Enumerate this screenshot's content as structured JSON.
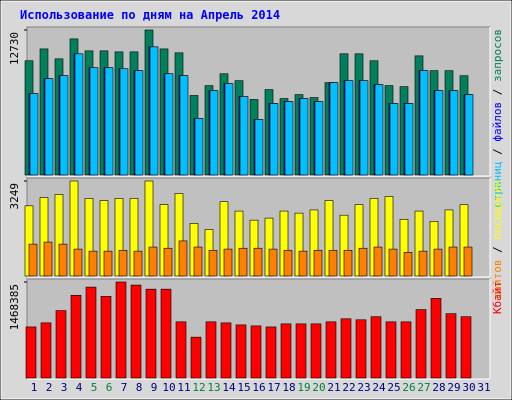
{
  "chart_data": {
    "type": "bar",
    "title": "Использование по дням на Апрель 2014",
    "categories": [
      "1",
      "2",
      "3",
      "4",
      "5",
      "6",
      "7",
      "8",
      "9",
      "10",
      "11",
      "12",
      "13",
      "14",
      "15",
      "16",
      "17",
      "18",
      "19",
      "20",
      "21",
      "22",
      "23",
      "24",
      "25",
      "26",
      "27",
      "28",
      "29",
      "30",
      "31"
    ],
    "category_colors": [
      "#000080",
      "#000080",
      "#000080",
      "#000080",
      "#008040",
      "#008040",
      "#000080",
      "#000080",
      "#000080",
      "#000080",
      "#000080",
      "#008040",
      "#008040",
      "#000080",
      "#000080",
      "#000080",
      "#000080",
      "#000080",
      "#008040",
      "#008040",
      "#000080",
      "#000080",
      "#000080",
      "#000080",
      "#000080",
      "#008040",
      "#008040",
      "#000080",
      "#000080",
      "#000080",
      "#000080"
    ],
    "legend_separator": " / ",
    "panels": [
      {
        "ylim": [
          0,
          12730
        ],
        "yticks": [
          12730
        ],
        "series": [
          {
            "name": "запросов",
            "color": "#00805c",
            "values": [
              10030,
              11070,
              10200,
              11950,
              10900,
              10900,
              10810,
              10810,
              12730,
              11070,
              10730,
              6980,
              7850,
              8890,
              8280,
              6630,
              7500,
              6710,
              7060,
              6800,
              8110,
              10640,
              10640,
              10030,
              7850,
              7760,
              10460,
              9160,
              9160,
              8720,
              null
            ]
          },
          {
            "name": "файлов",
            "color": "#0000ff",
            "values": [
              7150,
              8460,
              8720,
              10640,
              9420,
              9420,
              9330,
              9160,
              11250,
              8890,
              8720,
              4970,
              7410,
              8020,
              6890,
              4880,
              6280,
              6450,
              6710,
              6450,
              8110,
              8280,
              8280,
              7940,
              6280,
              6280,
              9160,
              7410,
              7410,
              7060,
              null
            ]
          },
          {
            "name": "страниц",
            "color": "#00c0ff",
            "values": [
              7150,
              8460,
              8720,
              10640,
              9420,
              9420,
              9330,
              9160,
              11250,
              8890,
              8720,
              4970,
              7410,
              8020,
              6890,
              4880,
              6280,
              6450,
              6710,
              6450,
              8110,
              8280,
              8280,
              7940,
              6280,
              6280,
              9160,
              7410,
              7410,
              7060,
              null
            ]
          }
        ]
      },
      {
        "ylim": [
          0,
          3249
        ],
        "yticks": [
          3249
        ],
        "series": [
          {
            "name": "посещений",
            "color": "#ffff00",
            "values": [
              2400,
              2680,
              2790,
              3249,
              2650,
              2580,
              2650,
              2650,
              3249,
              2440,
              2820,
              1800,
              1590,
              2540,
              2220,
              1910,
              1980,
              2220,
              2150,
              2260,
              2580,
              2080,
              2440,
              2650,
              2720,
              1940,
              2220,
              1870,
              2260,
              2440,
              null
            ]
          },
          {
            "name": "сайтов",
            "color": "#ff8000",
            "values": [
              1090,
              1160,
              1090,
              920,
              850,
              850,
              880,
              850,
              990,
              950,
              1200,
              990,
              880,
              920,
              950,
              950,
              920,
              880,
              850,
              880,
              880,
              880,
              950,
              990,
              920,
              810,
              850,
              920,
              990,
              990,
              null
            ]
          }
        ]
      },
      {
        "ylim": [
          0,
          1468385
        ],
        "yticks": [
          1468385
        ],
        "series": [
          {
            "name": "Кбайт",
            "color": "#ff0000",
            "values": [
              781000,
              843500,
              1031000,
              1265300,
              1390300,
              1249700,
              1468385,
              1421500,
              1359000,
              1359000,
              859200,
              624800,
              859200,
              843500,
              812300,
              796700,
              781000,
              827900,
              827900,
              827900,
              859200,
              906000,
              890400,
              937300,
              859200,
              859200,
              1046600,
              1218400,
              984100,
              937300,
              null
            ]
          }
        ]
      }
    ]
  }
}
